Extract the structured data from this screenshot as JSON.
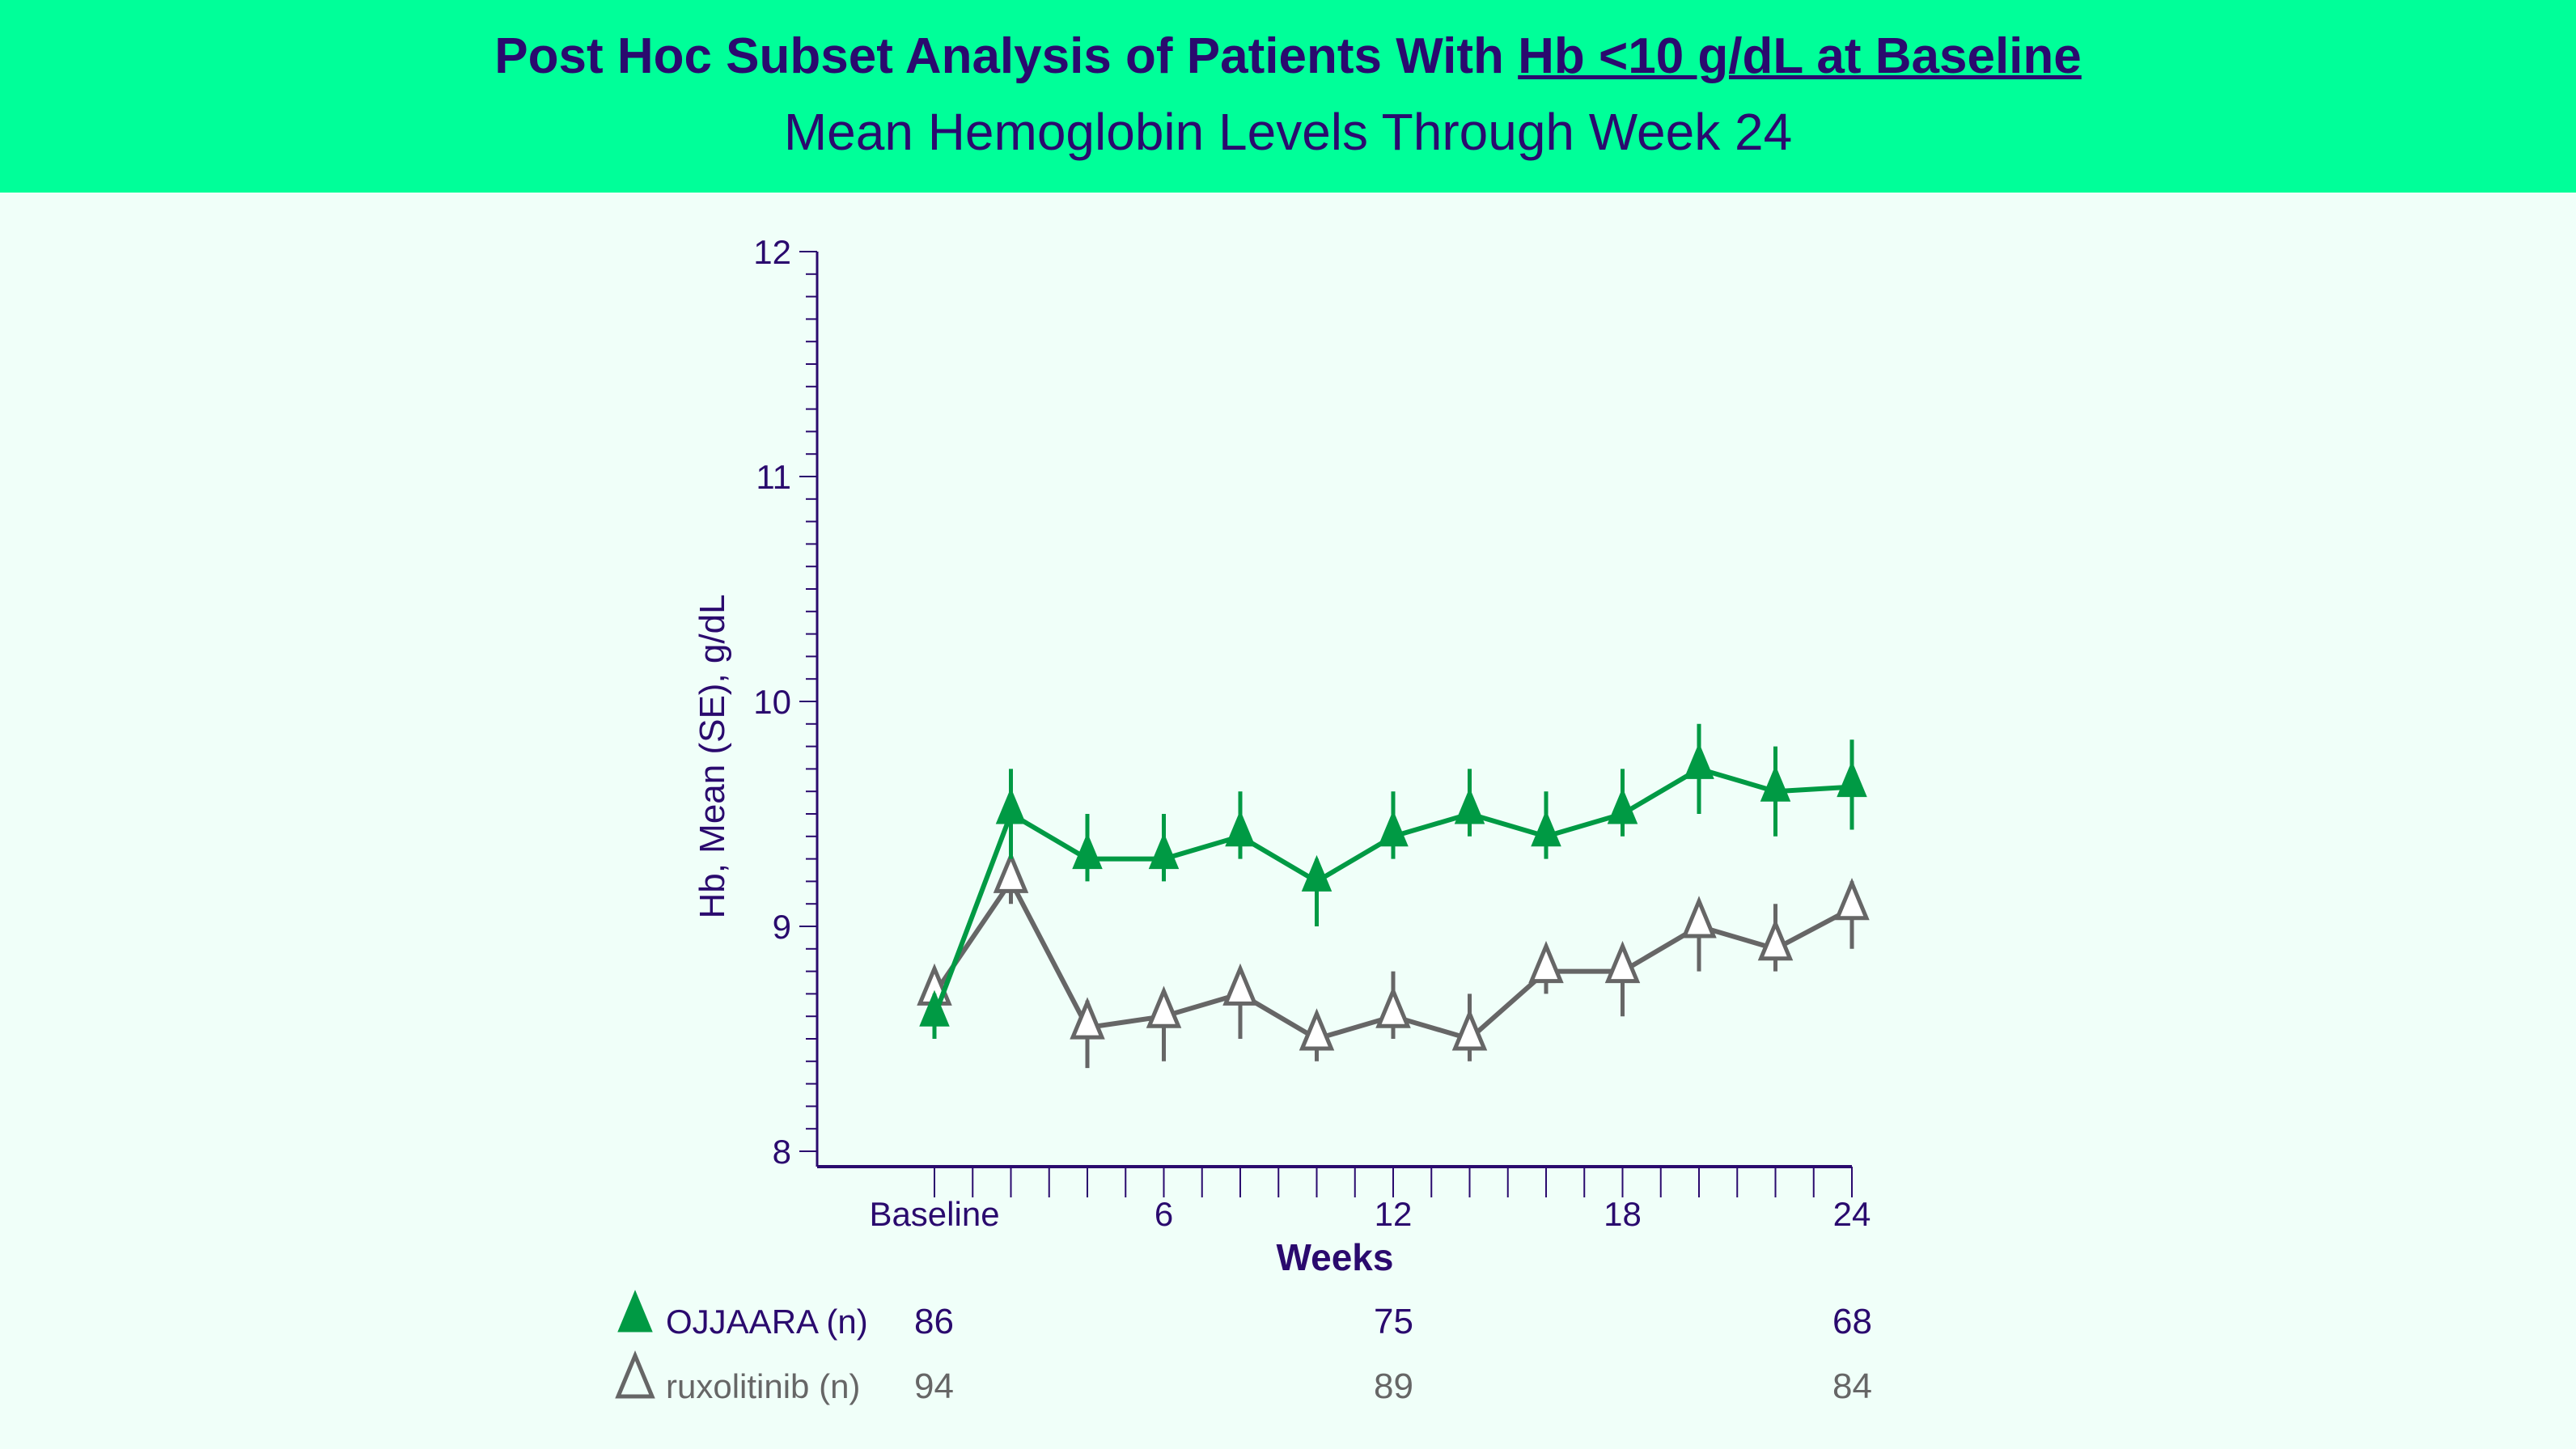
{
  "header": {
    "title_prefix": "Post Hoc Subset Analysis of Patients With ",
    "title_underlined": "Hb <10 g/dL at Baseline",
    "subtitle": "Mean Hemoglobin Levels Through Week 24"
  },
  "chart_data": {
    "type": "line",
    "title": "Post Hoc Subset Analysis of Patients With Hb <10 g/dL at Baseline",
    "subtitle": "Mean Hemoglobin Levels Through Week 24",
    "xlabel": "Weeks",
    "ylabel": "Hb, Mean (SE), g/dL",
    "xlim": [
      -3,
      24
    ],
    "ylim": [
      8,
      12
    ],
    "x_ticks": [
      0,
      6,
      12,
      18,
      24
    ],
    "x_tick_labels": [
      "Baseline",
      "6",
      "12",
      "18",
      "24"
    ],
    "y_ticks": [
      8,
      9,
      10,
      11,
      12
    ],
    "y_tick_labels": [
      "8",
      "9",
      "10",
      "11",
      "12"
    ],
    "grid": false,
    "x": [
      0,
      2,
      4,
      6,
      8,
      10,
      12,
      14,
      16,
      18,
      20,
      22,
      24
    ],
    "series": [
      {
        "name": "OJJAARA (n)",
        "color": "#009a44",
        "marker": "filled-triangle",
        "values": [
          8.6,
          9.5,
          9.3,
          9.3,
          9.4,
          9.2,
          9.4,
          9.5,
          9.4,
          9.5,
          9.7,
          9.6,
          9.62
        ],
        "se_lower": [
          8.5,
          9.3,
          9.2,
          9.2,
          9.3,
          9.0,
          9.3,
          9.4,
          9.3,
          9.4,
          9.5,
          9.4,
          9.43
        ],
        "se_upper": [
          8.7,
          9.7,
          9.5,
          9.5,
          9.6,
          9.3,
          9.6,
          9.7,
          9.6,
          9.7,
          9.9,
          9.8,
          9.83
        ]
      },
      {
        "name": "ruxolitinib (n)",
        "color": "#666666",
        "marker": "open-triangle",
        "values": [
          8.7,
          9.2,
          8.55,
          8.6,
          8.7,
          8.5,
          8.6,
          8.5,
          8.8,
          8.8,
          9.0,
          8.9,
          9.08
        ],
        "se_lower": [
          8.6,
          9.1,
          8.37,
          8.4,
          8.5,
          8.4,
          8.5,
          8.4,
          8.7,
          8.6,
          8.8,
          8.8,
          8.9
        ],
        "se_upper": [
          8.8,
          9.3,
          8.67,
          8.7,
          8.8,
          8.6,
          8.8,
          8.7,
          8.9,
          8.9,
          9.1,
          9.1,
          9.2
        ]
      }
    ],
    "n_table": {
      "weeks": [
        0,
        12,
        24
      ],
      "rows": [
        {
          "label": "OJJAARA (n)",
          "values": [
            "86",
            "75",
            "68"
          ],
          "color": "#2a0a6e",
          "marker_color": "#009a44"
        },
        {
          "label": "ruxolitinib (n)",
          "values": [
            "94",
            "89",
            "84"
          ],
          "color": "#666666",
          "marker_color": "#666666"
        }
      ]
    }
  }
}
